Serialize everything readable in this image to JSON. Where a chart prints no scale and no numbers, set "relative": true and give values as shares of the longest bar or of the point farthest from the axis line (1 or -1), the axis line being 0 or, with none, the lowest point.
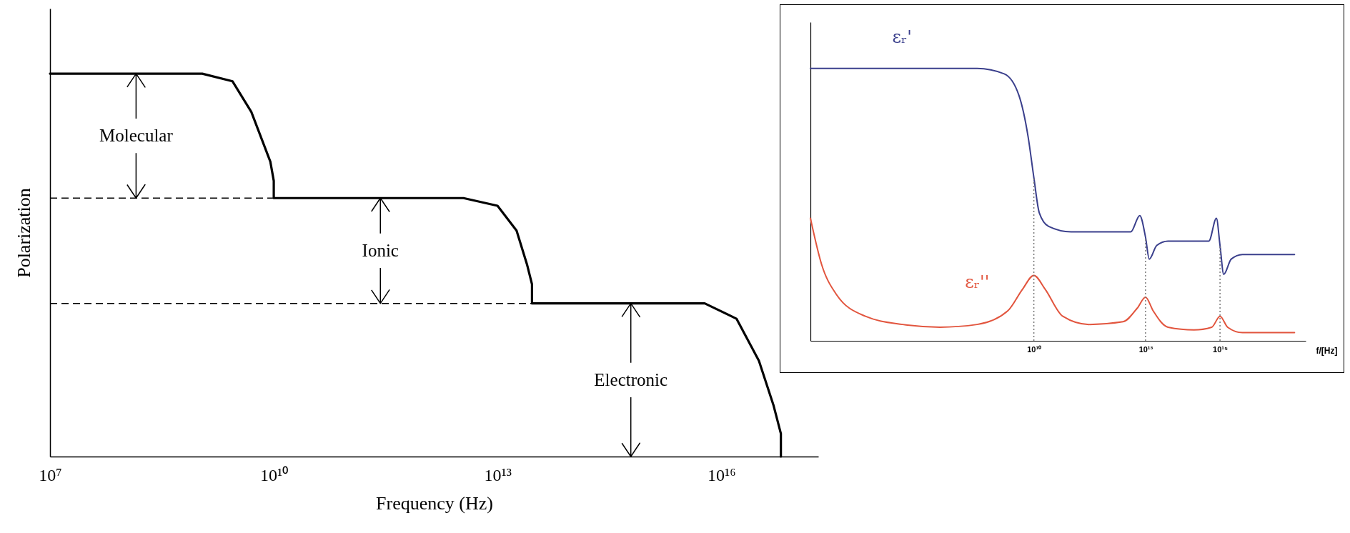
{
  "chart_data": [
    {
      "type": "line",
      "relative": true,
      "log": "x",
      "xlim": [
        10000000.0,
        2e+17
      ],
      "xticks": [
        {
          "value": 10000000.0,
          "label": "10⁷"
        },
        {
          "value": 10000000000.0,
          "label": "10¹⁰"
        },
        {
          "value": 10000000000000.0,
          "label": "10¹³"
        },
        {
          "value": 1e+16,
          "label": "10¹⁶"
        }
      ],
      "xlabel": "Frequency (Hz)",
      "ylabel": "Polarization",
      "series": [
        {
          "color": "#000000",
          "x": [
            10000000.0,
            1100000000.0,
            2800000000.0,
            5000000000.0,
            9000000000.0,
            10000000000.0,
            10000000000.0,
            3500000000000.0,
            10000000000000.0,
            18000000000000.0,
            25000000000000.0,
            29000000000000.0,
            29000000000000.0,
            6000000000000000.0,
            1.6e+16,
            3.2e+16,
            5e+16,
            6.3e+16,
            6.3e+16
          ],
          "values": [
            1,
            1,
            0.98,
            0.9,
            0.77,
            0.72,
            0.675,
            0.675,
            0.655,
            0.59,
            0.5,
            0.45,
            0.4,
            0.4,
            0.36,
            0.25,
            0.135,
            0.06,
            0
          ]
        }
      ],
      "ref_lines": [
        {
          "axis": "y",
          "value": 0.675,
          "line_style": "dashed"
        },
        {
          "axis": "y",
          "value": 0.4,
          "line_style": "dashed"
        }
      ],
      "annotations": [
        "Molecular",
        "Ionic",
        "Electronic"
      ]
    },
    {
      "type": "line",
      "relative": true,
      "log": "x",
      "xlim": [
        10000.0,
        2e+17
      ],
      "xticks": [
        {
          "value": 10000000000.0,
          "label": "10¹⁰"
        },
        {
          "value": 10000000000000.0,
          "label": "10¹³"
        },
        {
          "value": 1000000000000000.0,
          "label": "10¹⁵"
        }
      ],
      "xlabel": "f/[Hz]",
      "series": [
        {
          "name": "εᵣ'",
          "color": "#3a3f8c",
          "x": [
            10000.0,
            300000000.0,
            1600000000.0,
            4000000000.0,
            7000000000.0,
            10000000000.0,
            14000000000.0,
            25000000000.0,
            100000000000.0,
            4000000000000.0,
            7000000000000.0,
            10000000000000.0,
            12600000000000.0,
            20000000000000.0,
            40000000000000.0,
            500000000000000.0,
            800000000000000.0,
            1000000000000000.0,
            1260000000000000.0,
            2000000000000000.0,
            4000000000000000.0,
            1e+17
          ],
          "values": [
            1,
            1,
            0.98,
            0.9,
            0.75,
            0.6,
            0.47,
            0.42,
            0.4,
            0.4,
            0.46,
            0.38,
            0.3,
            0.35,
            0.366,
            0.366,
            0.45,
            0.35,
            0.244,
            0.3,
            0.317,
            0.317
          ]
        },
        {
          "name": "εᵣ''",
          "color": "#e2553e",
          "x": [
            10000.0,
            20000.0,
            50000.0,
            300000.0,
            3000000.0,
            30000000.0,
            300000000.0,
            2000000000.0,
            5000000000.0,
            10000000000.0,
            20000000000.0,
            60000000000.0,
            300000000000.0,
            2500000000000.0,
            6000000000000.0,
            10000000000000.0,
            16000000000000.0,
            40000000000000.0,
            200000000000000.0,
            600000000000000.0,
            1000000000000000.0,
            1600000000000000.0,
            4000000000000000.0,
            1e+17
          ],
          "values": [
            0.45,
            0.28,
            0.17,
            0.09,
            0.06,
            0.05,
            0.06,
            0.11,
            0.19,
            0.24,
            0.19,
            0.09,
            0.06,
            0.07,
            0.12,
            0.16,
            0.11,
            0.05,
            0.04,
            0.05,
            0.09,
            0.05,
            0.03,
            0.03
          ]
        }
      ],
      "ref_lines": [
        {
          "axis": "x",
          "value": 10000000000.0,
          "line_style": "dotted",
          "color": "#777777"
        },
        {
          "axis": "x",
          "value": 10000000000000.0,
          "line_style": "dotted",
          "color": "#777777"
        },
        {
          "axis": "x",
          "value": 1000000000000000.0,
          "line_style": "dotted",
          "color": "#777777"
        }
      ]
    }
  ]
}
